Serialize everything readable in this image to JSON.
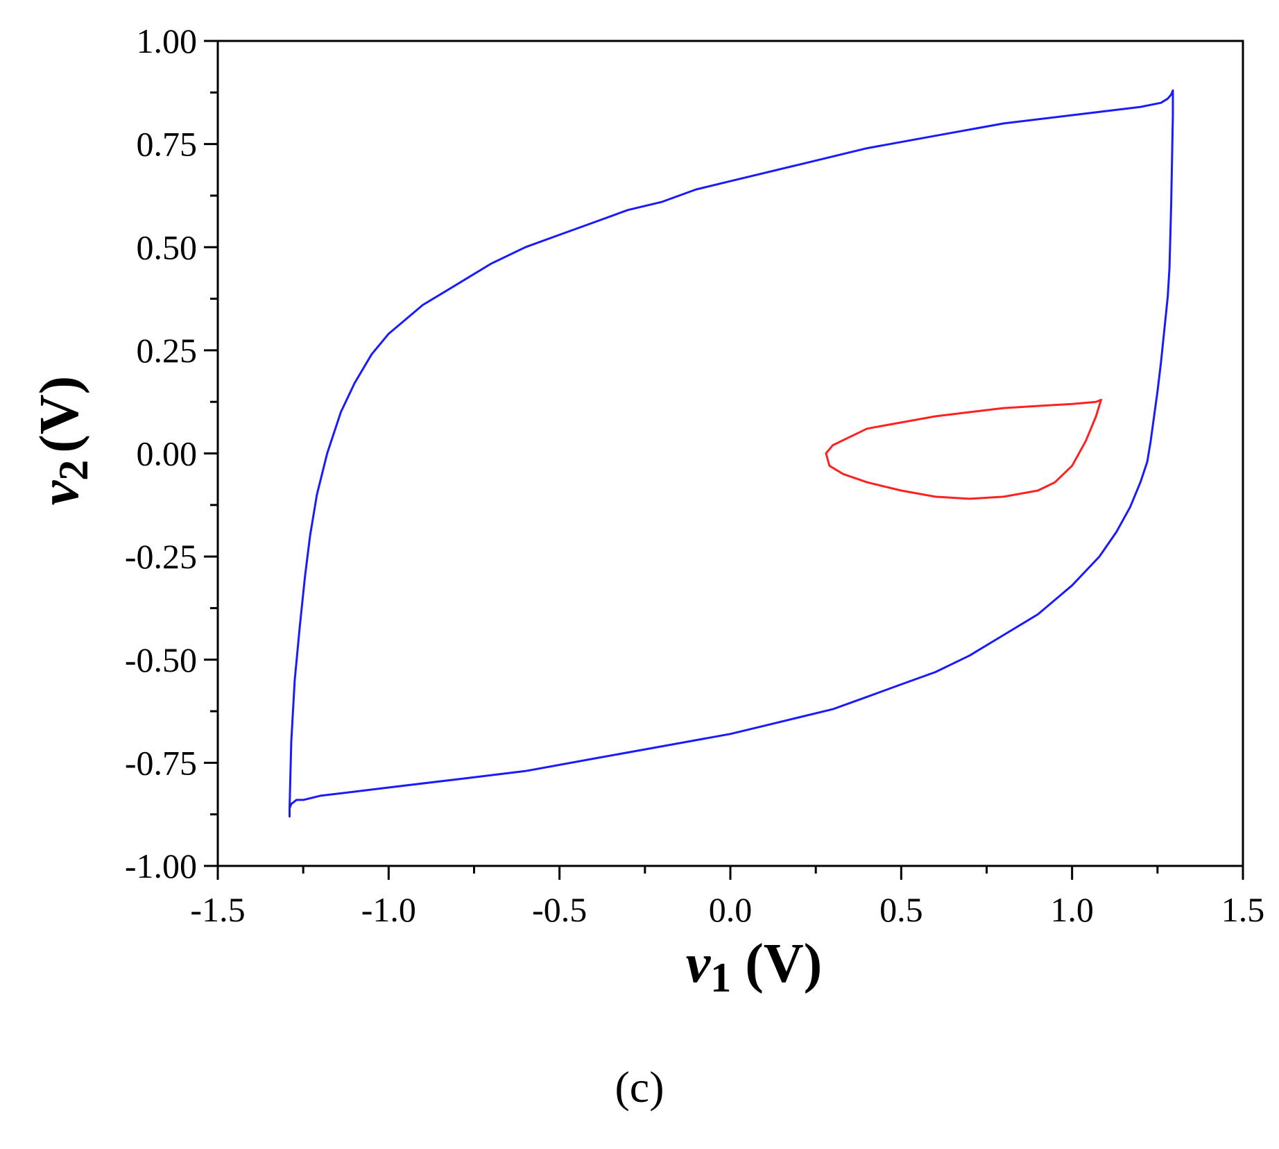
{
  "panel_label": "(c)",
  "chart_data": {
    "type": "line",
    "xlabel": {
      "symbol": "v",
      "subscript": "1",
      "unit": "(V)"
    },
    "ylabel": {
      "symbol": "v",
      "subscript": "2",
      "unit": "(V)"
    },
    "xlim": [
      -1.5,
      1.5
    ],
    "ylim": [
      -1.0,
      1.0
    ],
    "x_ticks": [
      -1.5,
      -1.0,
      -0.5,
      0.0,
      0.5,
      1.0,
      1.5
    ],
    "x_tick_labels": [
      "-1.5",
      "-1.0",
      "-0.5",
      "0.0",
      "0.5",
      "1.0",
      "1.5"
    ],
    "y_ticks": [
      1.0,
      0.75,
      0.5,
      0.25,
      0.0,
      -0.25,
      -0.5,
      -0.75,
      -1.0
    ],
    "y_tick_labels": [
      "1.00",
      "0.75",
      "0.50",
      "0.25",
      "0.00",
      "-0.25",
      "-0.50",
      "-0.75",
      "-1.00"
    ],
    "grid": false,
    "legend": "none",
    "series": [
      {
        "color": "#1a1aff",
        "closed": true,
        "x": [
          -1.29,
          -1.285,
          -1.275,
          -1.26,
          -1.245,
          -1.23,
          -1.21,
          -1.18,
          -1.14,
          -1.1,
          -1.05,
          -1.0,
          -0.9,
          -0.8,
          -0.7,
          -0.6,
          -0.5,
          -0.4,
          -0.3,
          -0.2,
          -0.1,
          0.0,
          0.2,
          0.4,
          0.6,
          0.8,
          1.0,
          1.2,
          1.26,
          1.28,
          1.29,
          1.295,
          1.295,
          1.29,
          1.285,
          1.28,
          1.27,
          1.26,
          1.25,
          1.24,
          1.23,
          1.22,
          1.2,
          1.17,
          1.13,
          1.08,
          1.0,
          0.9,
          0.8,
          0.7,
          0.6,
          0.5,
          0.4,
          0.3,
          0.2,
          0.1,
          0.0,
          -0.2,
          -0.4,
          -0.6,
          -0.8,
          -1.0,
          -1.1,
          -1.2,
          -1.25,
          -1.27,
          -1.285,
          -1.29,
          -1.29,
          -1.29,
          -1.29,
          -1.29,
          -1.29
        ],
        "y": [
          -0.86,
          -0.7,
          -0.55,
          -0.42,
          -0.3,
          -0.2,
          -0.1,
          0.0,
          0.1,
          0.17,
          0.24,
          0.29,
          0.36,
          0.41,
          0.46,
          0.5,
          0.53,
          0.56,
          0.59,
          0.61,
          0.64,
          0.66,
          0.7,
          0.74,
          0.77,
          0.8,
          0.82,
          0.84,
          0.85,
          0.86,
          0.87,
          0.88,
          0.82,
          0.6,
          0.45,
          0.38,
          0.3,
          0.22,
          0.15,
          0.09,
          0.03,
          -0.02,
          -0.07,
          -0.13,
          -0.19,
          -0.25,
          -0.32,
          -0.39,
          -0.44,
          -0.49,
          -0.53,
          -0.56,
          -0.59,
          -0.62,
          -0.64,
          -0.66,
          -0.68,
          -0.71,
          -0.74,
          -0.77,
          -0.79,
          -0.81,
          -0.82,
          -0.83,
          -0.84,
          -0.84,
          -0.85,
          -0.86,
          -0.87,
          -0.87,
          -0.88,
          -0.87,
          -0.86
        ]
      },
      {
        "color": "#ff2020",
        "closed": true,
        "x": [
          0.28,
          0.3,
          0.35,
          0.4,
          0.5,
          0.6,
          0.7,
          0.8,
          0.9,
          1.0,
          1.07,
          1.085,
          1.07,
          1.04,
          1.0,
          0.95,
          0.9,
          0.8,
          0.7,
          0.6,
          0.5,
          0.4,
          0.33,
          0.29,
          0.28
        ],
        "y": [
          0.0,
          0.02,
          0.04,
          0.06,
          0.075,
          0.09,
          0.1,
          0.11,
          0.115,
          0.12,
          0.125,
          0.13,
          0.09,
          0.03,
          -0.03,
          -0.07,
          -0.09,
          -0.105,
          -0.11,
          -0.105,
          -0.09,
          -0.07,
          -0.05,
          -0.03,
          0.0
        ]
      }
    ]
  }
}
